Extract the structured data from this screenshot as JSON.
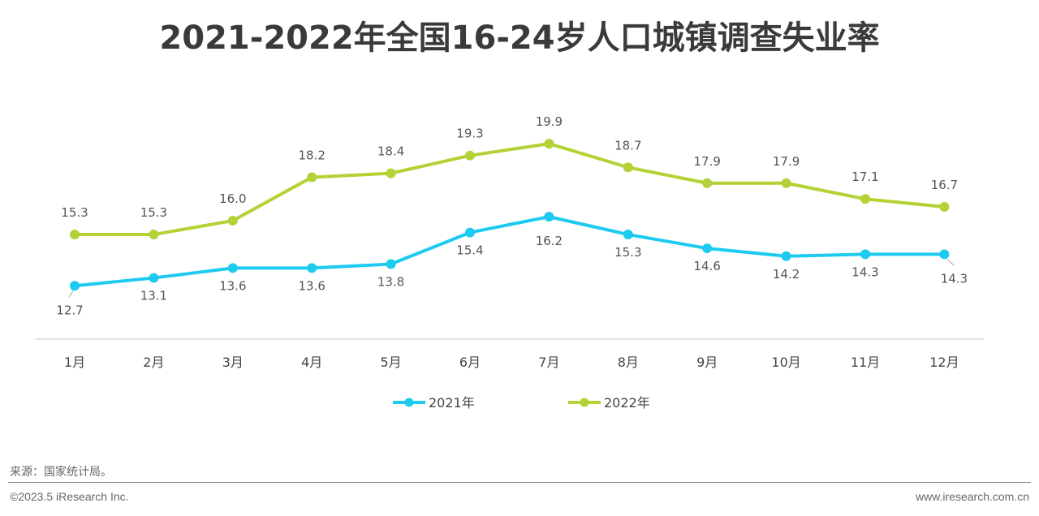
{
  "chart_data": {
    "type": "line",
    "title": "2021-2022年全国16-24岁人口城镇调查失业率",
    "categories": [
      "1月",
      "2月",
      "3月",
      "4月",
      "5月",
      "6月",
      "7月",
      "8月",
      "9月",
      "10月",
      "11月",
      "12月"
    ],
    "series": [
      {
        "name": "2021年",
        "color": "#1ECBF0",
        "values": [
          12.7,
          13.1,
          13.6,
          13.6,
          13.8,
          15.4,
          16.2,
          15.3,
          14.6,
          14.2,
          14.3,
          14.3
        ],
        "label_position": "below"
      },
      {
        "name": "2022年",
        "color": "#B2D235",
        "values": [
          15.3,
          15.3,
          16.0,
          18.2,
          18.4,
          19.3,
          19.9,
          18.7,
          17.9,
          17.9,
          17.1,
          16.7
        ],
        "label_position": "above"
      }
    ],
    "xlabel": "",
    "ylabel": "",
    "ylim": [
      10,
      22
    ],
    "y_axis_visible": false,
    "grid": false,
    "legend": "bottom-center",
    "data_labels": true
  },
  "footer": {
    "source": "来源：国家统计局。",
    "copyright": "©2023.5 iResearch Inc.",
    "website": "www.iresearch.com.cn"
  }
}
